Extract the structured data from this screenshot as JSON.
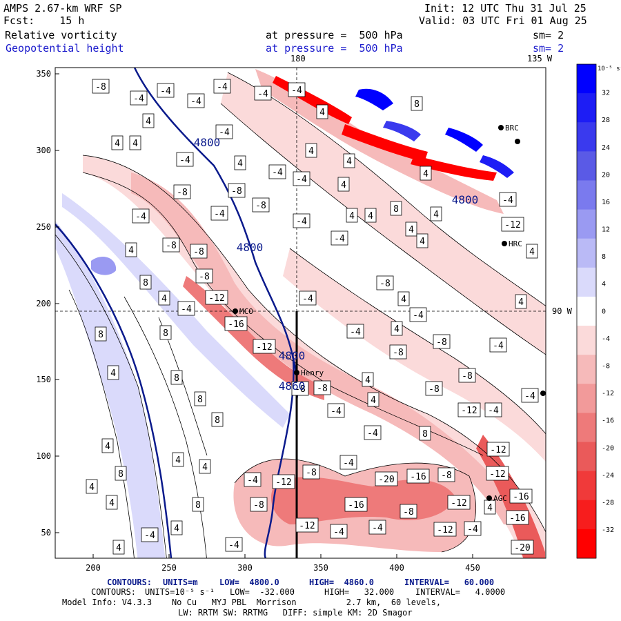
{
  "header": {
    "model": "AMPS 2.67-km WRF SP",
    "fcst_label": "Fcst:",
    "fcst_value": "15 h",
    "init": "Init: 12 UTC Thu 31 Jul 25",
    "valid": "Valid: 03 UTC Fri 01 Aug 25",
    "field1": "Relative vorticity",
    "field1_level": "at pressure =  500 hPa",
    "field1_smooth": "sm= 2",
    "field2": "Geopotential height",
    "field2_level": "at pressure =  500 hPa",
    "field2_smooth": "sm= 2"
  },
  "map": {
    "lon_top_180": "180",
    "lon_top_135": "135 W",
    "lon_right_90": "90 W",
    "stations": [
      "MCO",
      "Henry",
      "HRC",
      "AGC",
      "BRC"
    ],
    "x_ticks": [
      "200",
      "250",
      "300",
      "350",
      "400",
      "450"
    ],
    "y_ticks": [
      "350",
      "300",
      "250",
      "200",
      "150",
      "100",
      "50"
    ],
    "height_labels": [
      "4800",
      "4800",
      "4800",
      "4860",
      "4800"
    ],
    "vort_labels": [
      "-8",
      "-4",
      "4",
      "8",
      "-12",
      "-16",
      "-20"
    ]
  },
  "colorbar": {
    "unit": "10⁻⁵ s⁻¹",
    "levels": [
      "32",
      "28",
      "24",
      "20",
      "16",
      "12",
      "8",
      "4",
      "0",
      "-4",
      "-8",
      "-12",
      "-16",
      "-20",
      "-24",
      "-28",
      "-32"
    ],
    "colors": [
      "#0000ff",
      "#1d1df5",
      "#3a3aee",
      "#5a5ae6",
      "#7a7aee",
      "#9a9af2",
      "#babaf6",
      "#dadafb",
      "#ffffff",
      "#fbdada",
      "#f6baba",
      "#f29a9a",
      "#ee7a7a",
      "#ea5a5a",
      "#f03a3a",
      "#f71d1d",
      "#ff0000"
    ]
  },
  "footer": {
    "line1_label": "CONTOURS:",
    "line1_units": "UNITS=m",
    "line1_low": "LOW=  4800.0",
    "line1_high": "HIGH=  4860.0",
    "line1_interval": "INTERVAL=   60.000",
    "line2_label": "CONTOURS:",
    "line2_units": "UNITS=10⁻⁵ s⁻¹",
    "line2_low": "LOW=  -32.000",
    "line2_high": "HIGH=   32.000",
    "line2_interval": "INTERVAL=   4.0000",
    "line3": "Model Info: V4.3.3    No Cu   MYJ PBL  Morrison          2.7 km,  60 levels,",
    "line4": "LW: RRTM SW: RRTMG   DIFF: simple KM: 2D Smagor"
  },
  "colors": {
    "height_contour": "#0a1a8c",
    "header_blue": "#1a1acc"
  }
}
